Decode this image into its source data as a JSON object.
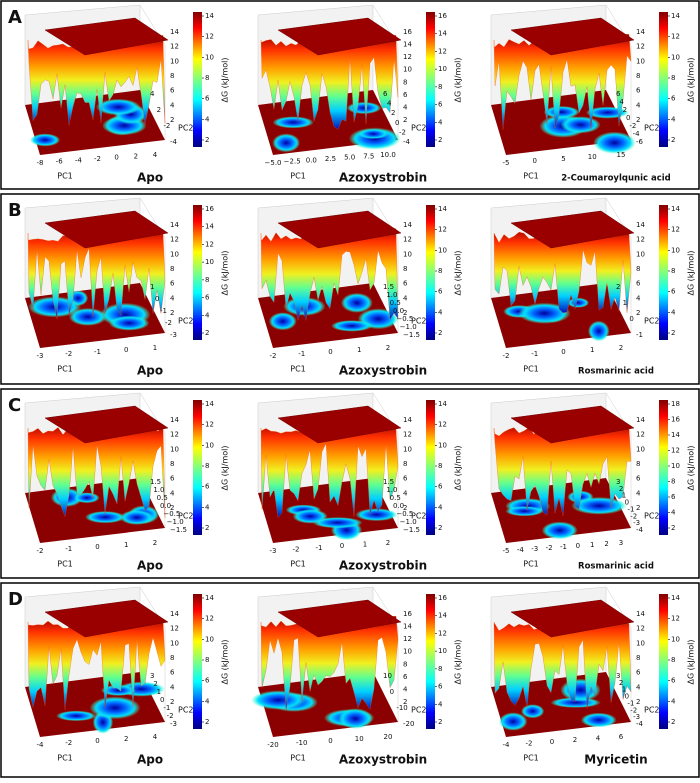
{
  "panels": [
    {
      "label": "A",
      "plots": [
        {
          "title": "Apo",
          "x_label": "PC1",
          "y_label": "PC2",
          "colorbar_label": "ΔG (kJ/mol)",
          "x_ticks": [
            -8,
            -6,
            -4,
            -2,
            0,
            2,
            4
          ],
          "y_ticks": [
            4,
            2,
            -2,
            -4
          ],
          "z_ticks": [
            14,
            12,
            10,
            8,
            6,
            4,
            2
          ],
          "colorbar_ticks": [
            14,
            12,
            10,
            8,
            6,
            4,
            2
          ]
        },
        {
          "title": "Azoxystrobin",
          "x_label": "PC1",
          "y_label": "PC2",
          "colorbar_label": "ΔG (kJ/mol)",
          "x_ticks": [
            "−5.0",
            "−2.5",
            "0.0",
            "2.5",
            "5.0",
            "7.5",
            "10.0"
          ],
          "y_ticks": [
            6,
            4,
            2,
            0,
            -2,
            -4
          ],
          "z_ticks": [
            16,
            14,
            12,
            10,
            8,
            6,
            4,
            2
          ],
          "colorbar_ticks": [
            16,
            14,
            12,
            10,
            8,
            6,
            4,
            2
          ]
        },
        {
          "title": "2-Coumaroylqunic acid",
          "x_label": "PC1",
          "y_label": "PC2",
          "colorbar_label": "ΔG (kJ/mol)",
          "x_ticks": [
            -5,
            0,
            5,
            10,
            15
          ],
          "y_ticks": [
            6,
            4,
            2,
            0,
            -2,
            -4,
            -6
          ],
          "z_ticks": [
            14,
            12,
            10,
            8,
            6,
            4,
            2
          ],
          "colorbar_ticks": [
            14,
            12,
            10,
            8,
            6,
            4,
            2
          ]
        }
      ]
    },
    {
      "label": "B",
      "plots": [
        {
          "title": "Apo",
          "x_label": "PC1",
          "y_label": "PC2",
          "colorbar_label": "ΔG (kJ/mol)",
          "x_ticks": [
            -3,
            -2,
            -1,
            0,
            1
          ],
          "y_ticks": [
            1,
            0,
            -1,
            -2,
            -3
          ],
          "z_ticks": [
            14,
            12,
            10,
            8,
            6,
            4,
            2
          ],
          "colorbar_ticks": [
            16,
            14,
            12,
            10,
            8,
            6,
            4,
            2
          ]
        },
        {
          "title": "Azoxystrobin",
          "x_label": "PC1",
          "y_label": "PC2",
          "colorbar_label": "ΔG (kJ/mol)",
          "x_ticks": [
            -2,
            -1,
            0,
            1,
            2
          ],
          "y_ticks": [
            "1.5",
            "1.0",
            "0.5",
            "0.0",
            "−0.5",
            "−1.0",
            "−1.5"
          ],
          "z_ticks": [
            14,
            12,
            10,
            8,
            6,
            4,
            2
          ],
          "colorbar_ticks": [
            14,
            12,
            10,
            8,
            6,
            4,
            2
          ]
        },
        {
          "title": "Rosmarinic acid",
          "x_label": "PC1",
          "y_label": "PC2",
          "colorbar_label": "ΔG (kJ/mol)",
          "x_ticks": [
            -2,
            -1,
            0,
            1,
            2
          ],
          "y_ticks": [
            2,
            1,
            0,
            -1
          ],
          "z_ticks": [
            14,
            12,
            10,
            8,
            6,
            4,
            2
          ],
          "colorbar_ticks": [
            14,
            12,
            10,
            8,
            6,
            4,
            2
          ]
        }
      ]
    },
    {
      "label": "C",
      "plots": [
        {
          "title": "Apo",
          "x_label": "PC1",
          "y_label": "PC2",
          "colorbar_label": "ΔG (kJ/mol)",
          "x_ticks": [
            -2,
            -1,
            0,
            1,
            2
          ],
          "y_ticks": [
            "1.5",
            "1.0",
            "0.5",
            "0.0",
            "−0.5",
            "−1.0",
            "−1.5"
          ],
          "z_ticks": [
            14,
            12,
            10,
            8,
            6,
            4,
            2
          ],
          "colorbar_ticks": [
            14,
            12,
            10,
            8,
            6,
            4,
            2
          ]
        },
        {
          "title": "Azoxystrobin",
          "x_label": "PC1",
          "y_label": "PC2",
          "colorbar_label": "ΔG (kJ/mol)",
          "x_ticks": [
            -3,
            -2,
            -1,
            0,
            1,
            2
          ],
          "y_ticks": [
            "1.5",
            "1.0",
            "0.5",
            "0.0",
            "−0.5",
            "−1.0",
            "−1.5"
          ],
          "z_ticks": [
            14,
            12,
            10,
            8,
            6,
            4,
            2
          ],
          "colorbar_ticks": [
            14,
            12,
            10,
            8,
            6,
            4,
            2
          ]
        },
        {
          "title": "Rosmarinic acid",
          "x_label": "PC1",
          "y_label": "PC2",
          "colorbar_label": "ΔG (kJ/mol)",
          "x_ticks": [
            -5,
            -4,
            -3,
            -2,
            -1,
            0,
            1,
            2,
            3
          ],
          "y_ticks": [
            3,
            2,
            1,
            0,
            -1,
            -2,
            -3,
            -4
          ],
          "z_ticks": [
            14,
            12,
            10,
            8,
            6,
            4,
            2
          ],
          "colorbar_ticks": [
            18,
            16,
            14,
            12,
            10,
            8,
            6,
            4,
            2
          ]
        }
      ]
    },
    {
      "label": "D",
      "plots": [
        {
          "title": "Apo",
          "x_label": "PC1",
          "y_label": "PC2",
          "colorbar_label": "ΔG (kJ/mol)",
          "x_ticks": [
            -4,
            -2,
            0,
            2,
            4
          ],
          "y_ticks": [
            3,
            2,
            1,
            0,
            -1,
            -2,
            -3
          ],
          "z_ticks": [
            14,
            12,
            10,
            8,
            6,
            4,
            2
          ],
          "colorbar_ticks": [
            14,
            12,
            10,
            8,
            6,
            4,
            2
          ]
        },
        {
          "title": "Azoxystrobin",
          "x_label": "PC1",
          "y_label": "PC2",
          "colorbar_label": "ΔG (kJ/mol)",
          "x_ticks": [
            -20,
            -10,
            0,
            10,
            20
          ],
          "y_ticks": [
            10,
            0,
            -10,
            -20
          ],
          "z_ticks": [
            16,
            14,
            12,
            10,
            8,
            6,
            4,
            2
          ],
          "colorbar_ticks": [
            16,
            14,
            12,
            10,
            8,
            6,
            4,
            2
          ]
        },
        {
          "title": "Myricetin",
          "x_label": "PC1",
          "y_label": "PC2",
          "colorbar_label": "ΔG (kJ/mol)",
          "x_ticks": [
            -4,
            -2,
            0,
            2,
            4,
            6
          ],
          "y_ticks": [
            3,
            2,
            1,
            0,
            -1,
            -2,
            -3,
            -4
          ],
          "z_ticks": [
            14,
            12,
            10,
            8,
            6,
            4,
            2
          ],
          "colorbar_ticks": [
            14,
            12,
            10,
            8,
            6,
            4,
            2
          ]
        }
      ]
    }
  ]
}
